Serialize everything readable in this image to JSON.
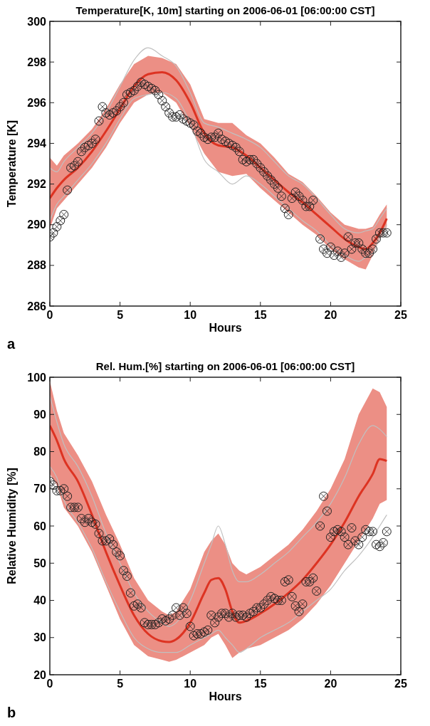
{
  "chart_data": [
    {
      "type": "line",
      "title": "Temperature[K, 10m] starting on 2006-06-01 [06:00:00 CST]",
      "xlabel": "Hours",
      "ylabel": "Temperature [K]",
      "xlim": [
        0,
        25
      ],
      "xticks": [
        0,
        5,
        10,
        15,
        20,
        25
      ],
      "ylim": [
        286,
        300
      ],
      "yticks": [
        286,
        288,
        290,
        292,
        294,
        296,
        298,
        300
      ],
      "grid": false,
      "annotations": [
        "a"
      ],
      "x": [
        0,
        0.5,
        1,
        2,
        3,
        4,
        5,
        6,
        7,
        8,
        9,
        10,
        11,
        12,
        13,
        14,
        15,
        16,
        17,
        18,
        19,
        20,
        21,
        22,
        22.5,
        23,
        23.5,
        24
      ],
      "series": [
        {
          "color": "#c0c0c0",
          "values": [
            292.8,
            292.6,
            293.1,
            293.8,
            294.5,
            295.5,
            296.8,
            298.1,
            298.7,
            298.3,
            297.8,
            296.5,
            295.0,
            294.8,
            294.5,
            294.2,
            293.8,
            293.1,
            292.4,
            292.0,
            291.3,
            290.5,
            289.8,
            289.6,
            289.7,
            289.8,
            290.3,
            290.8
          ]
        },
        {
          "color": "#c0c0c0",
          "values": [
            290.2,
            291.0,
            291.4,
            292.2,
            293.0,
            294.0,
            295.2,
            296.2,
            296.4,
            296.5,
            296.2,
            295.0,
            293.2,
            292.6,
            292.0,
            292.4,
            292.0,
            291.4,
            290.8,
            290.2,
            289.7,
            289.0,
            288.5,
            288.2,
            288.4,
            288.6,
            289.4,
            290.0
          ]
        },
        {
          "color": "#dd3322",
          "values": [
            291.3,
            291.8,
            292.2,
            292.8,
            293.6,
            294.6,
            295.7,
            296.8,
            297.4,
            297.5,
            297.1,
            296.0,
            294.5,
            293.9,
            293.8,
            293.4,
            292.8,
            292.2,
            291.6,
            291.1,
            290.5,
            289.9,
            289.3,
            288.9,
            288.8,
            289.1,
            289.6,
            290.3
          ],
          "upper": [
            293.3,
            292.9,
            293.4,
            294.0,
            294.7,
            295.7,
            296.9,
            297.9,
            298.3,
            298.2,
            297.9,
            296.9,
            295.2,
            295.0,
            295.0,
            294.4,
            294.0,
            293.3,
            292.5,
            292.1,
            291.4,
            290.6,
            290.0,
            289.8,
            289.8,
            289.9,
            290.5,
            291.0
          ],
          "lower": [
            289.8,
            290.8,
            291.2,
            292.0,
            292.8,
            293.8,
            295.0,
            296.0,
            296.4,
            296.5,
            296.0,
            294.8,
            293.5,
            292.6,
            292.4,
            292.5,
            291.8,
            291.2,
            290.6,
            290.0,
            289.5,
            288.8,
            288.3,
            287.9,
            287.8,
            288.5,
            289.3,
            289.9
          ]
        },
        {
          "type": "scatter",
          "color": "#222222",
          "marker": "circle",
          "x": [
            0,
            0.25,
            0.5,
            0.75,
            1,
            1.25,
            1.5,
            1.75,
            2,
            2.25,
            2.5,
            2.75,
            3,
            3.25,
            3.5,
            3.75,
            4,
            4.25,
            4.5,
            4.75,
            5,
            5.25,
            5.5,
            5.75,
            6,
            6.25,
            6.5,
            6.75,
            7,
            7.25,
            7.5,
            7.75,
            8,
            8.25,
            8.5,
            8.75,
            9,
            9.25,
            9.5,
            9.75,
            10,
            10.25,
            10.5,
            10.75,
            11,
            11.25,
            11.5,
            11.75,
            12,
            12.25,
            12.5,
            12.75,
            13,
            13.25,
            13.5,
            13.75,
            14,
            14.25,
            14.5,
            14.75,
            15,
            15.25,
            15.5,
            15.75,
            16,
            16.25,
            16.5,
            16.75,
            17,
            17.25,
            17.5,
            17.75,
            18,
            18.25,
            18.5,
            18.75,
            19.25,
            19.5,
            19.75,
            20,
            20.25,
            20.5,
            20.75,
            21,
            21.25,
            21.5,
            21.75,
            22,
            22.25,
            22.5,
            22.75,
            23,
            23.25,
            23.5,
            23.75,
            24
          ],
          "values": [
            289.4,
            289.6,
            289.9,
            290.2,
            290.5,
            291.7,
            292.8,
            292.9,
            293.1,
            293.6,
            293.8,
            293.9,
            294.0,
            294.2,
            295.1,
            295.8,
            295.5,
            295.4,
            295.5,
            295.6,
            295.8,
            296.0,
            296.4,
            296.5,
            296.6,
            296.8,
            297.0,
            296.9,
            296.8,
            296.7,
            296.6,
            296.4,
            296.1,
            295.8,
            295.5,
            295.3,
            295.3,
            295.4,
            295.2,
            295.1,
            295.0,
            294.9,
            294.6,
            294.5,
            294.3,
            294.2,
            294.3,
            294.3,
            294.5,
            294.2,
            294.1,
            294.0,
            293.9,
            293.8,
            293.6,
            293.2,
            293.1,
            293.2,
            293.2,
            293.0,
            292.8,
            292.6,
            292.4,
            292.2,
            292.0,
            291.8,
            291.4,
            290.8,
            290.5,
            291.3,
            291.6,
            291.4,
            291.2,
            290.9,
            290.9,
            291.2,
            289.3,
            288.8,
            288.6,
            288.9,
            288.5,
            288.7,
            288.4,
            288.6,
            289.4,
            288.8,
            289.1,
            289.1,
            288.8,
            288.6,
            288.6,
            288.8,
            289.3,
            289.6,
            289.6,
            289.6
          ]
        }
      ]
    },
    {
      "type": "line",
      "title": "Rel. Hum.[%] starting on 2006-06-01 [06:00:00 CST]",
      "xlabel": "Hours",
      "ylabel": "Relative Humidity [%]",
      "xlim": [
        0,
        25
      ],
      "xticks": [
        0,
        5,
        10,
        15,
        20,
        25
      ],
      "ylim": [
        20,
        100
      ],
      "yticks": [
        20,
        30,
        40,
        50,
        60,
        70,
        80,
        90,
        100
      ],
      "grid": false,
      "annotations": [
        "b"
      ],
      "x": [
        0,
        0.5,
        1,
        2,
        3,
        4,
        5,
        6,
        7,
        8,
        8.5,
        9,
        10,
        11,
        11.5,
        12,
        12.5,
        13,
        13.5,
        14,
        15,
        16,
        17,
        18,
        19,
        20,
        21,
        22,
        23,
        23.5,
        24
      ],
      "series": [
        {
          "color": "#c0c0c0",
          "values": [
            95,
            88,
            82,
            76,
            68,
            58,
            50,
            42,
            37,
            34,
            33,
            34,
            40,
            50,
            55,
            60,
            55,
            48,
            45,
            45,
            47,
            50,
            53,
            57,
            61,
            66,
            73,
            82,
            87,
            86,
            84
          ]
        },
        {
          "color": "#c0c0c0",
          "values": [
            76,
            73,
            67,
            61,
            54,
            45,
            37,
            30,
            27,
            26,
            26,
            26,
            28,
            30,
            31,
            32,
            30,
            28,
            26,
            27,
            30,
            32,
            34,
            37,
            40,
            43,
            48,
            52,
            57,
            60,
            63
          ]
        },
        {
          "color": "#dd3322",
          "values": [
            87,
            83,
            78,
            72,
            63,
            53,
            44,
            36,
            31,
            29,
            28.8,
            29.5,
            34,
            42,
            45.5,
            46,
            43,
            37,
            34,
            34.5,
            36.5,
            39,
            42,
            45.5,
            50,
            55,
            61,
            68,
            74,
            78,
            77.5
          ],
          "upper": [
            99,
            91,
            85,
            79,
            72,
            63,
            55,
            46,
            40,
            37,
            36,
            37,
            43,
            53,
            56,
            58,
            55,
            50,
            48,
            47,
            49,
            52,
            55,
            59,
            64,
            70,
            78,
            90,
            97,
            96,
            92
          ],
          "lower": [
            74,
            71,
            65,
            60,
            53,
            44,
            35,
            28,
            25,
            24,
            23.5,
            24,
            26,
            28,
            30,
            31,
            28,
            24.5,
            26,
            27,
            28,
            30,
            32,
            35,
            39,
            44,
            50,
            56,
            62,
            66,
            67
          ]
        },
        {
          "type": "scatter",
          "color": "#222222",
          "marker": "circle",
          "x": [
            0,
            0.25,
            0.5,
            0.75,
            1,
            1.25,
            1.5,
            1.75,
            2,
            2.25,
            2.5,
            2.75,
            3,
            3.25,
            3.5,
            3.75,
            4,
            4.25,
            4.5,
            4.75,
            5,
            5.25,
            5.5,
            5.75,
            6,
            6.25,
            6.5,
            6.75,
            7,
            7.25,
            7.5,
            7.75,
            8,
            8.25,
            8.5,
            8.75,
            9,
            9.25,
            9.5,
            9.75,
            10,
            10.25,
            10.5,
            10.75,
            11,
            11.25,
            11.5,
            11.75,
            12,
            12.25,
            12.5,
            12.75,
            13,
            13.25,
            13.5,
            13.75,
            14,
            14.25,
            14.5,
            14.75,
            15,
            15.25,
            15.5,
            15.75,
            16,
            16.25,
            16.5,
            16.75,
            17,
            17.25,
            17.5,
            17.75,
            18,
            18.25,
            18.5,
            18.75,
            19,
            19.25,
            19.5,
            19.75,
            20,
            20.25,
            20.5,
            20.75,
            21,
            21.25,
            21.5,
            21.75,
            22,
            22.25,
            22.5,
            22.75,
            23,
            23.25,
            23.5,
            23.75,
            24
          ],
          "values": [
            72,
            71,
            69.5,
            69.5,
            70,
            68,
            65,
            65,
            65,
            62,
            61,
            62,
            61,
            60.5,
            58,
            56,
            56,
            56.5,
            55,
            53,
            52,
            48,
            46.5,
            42,
            38.5,
            39,
            38,
            34,
            33.5,
            33.5,
            33.5,
            34,
            35,
            34.5,
            35,
            36,
            38,
            36,
            38,
            36.5,
            33,
            30.5,
            31,
            31,
            31.5,
            32,
            36,
            34,
            35.5,
            36.5,
            36.5,
            35.5,
            36.5,
            35.5,
            36,
            36,
            35.5,
            36.5,
            37,
            38,
            38,
            39,
            40,
            41,
            40.5,
            40,
            40,
            45,
            45.5,
            41,
            38.5,
            37,
            39,
            45,
            45,
            46,
            42.5,
            60,
            68,
            64,
            57,
            58.5,
            59,
            58.5,
            57,
            55,
            59.5,
            56,
            55,
            57,
            59,
            58.5,
            58.5,
            55,
            54.5,
            55.5,
            58.5
          ]
        }
      ]
    }
  ]
}
